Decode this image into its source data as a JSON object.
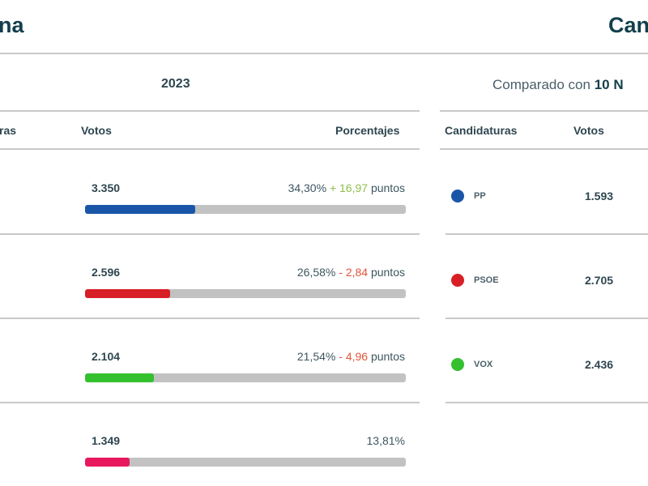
{
  "left_panel": {
    "title": "na",
    "year": "2023",
    "headers": {
      "candidaturas": "ras",
      "votos": "Votos",
      "porcentajes": "Porcentajes"
    },
    "rows": [
      {
        "votes": "3.350",
        "percent": "34,30%",
        "sign": "+",
        "change": "16,97",
        "unit": "puntos",
        "trend": "up",
        "share": 34.3,
        "color": "#1a56a8"
      },
      {
        "votes": "2.596",
        "percent": "26,58%",
        "sign": "-",
        "change": "2,84",
        "unit": "puntos",
        "trend": "down",
        "share": 26.58,
        "color": "#d81f26"
      },
      {
        "votes": "2.104",
        "percent": "21,54%",
        "sign": "-",
        "change": "4,96",
        "unit": "puntos",
        "trend": "down",
        "share": 21.54,
        "color": "#35c02f"
      },
      {
        "votes": "1.349",
        "percent": "13,81%",
        "sign": "",
        "change": "",
        "unit": "",
        "trend": "none",
        "share": 13.81,
        "color": "#e8185e"
      }
    ]
  },
  "right_panel": {
    "title": "Can",
    "compare_prefix": "Comparado con",
    "compare_bold": "10 N",
    "headers": {
      "candidaturas": "Candidaturas",
      "votos": "Votos"
    },
    "rows": [
      {
        "party": "PP",
        "votes": "1.593",
        "color": "#1a56a8"
      },
      {
        "party": "PSOE",
        "votes": "2.705",
        "color": "#d81f26"
      },
      {
        "party": "VOX",
        "votes": "2.436",
        "color": "#35c02f"
      }
    ]
  }
}
